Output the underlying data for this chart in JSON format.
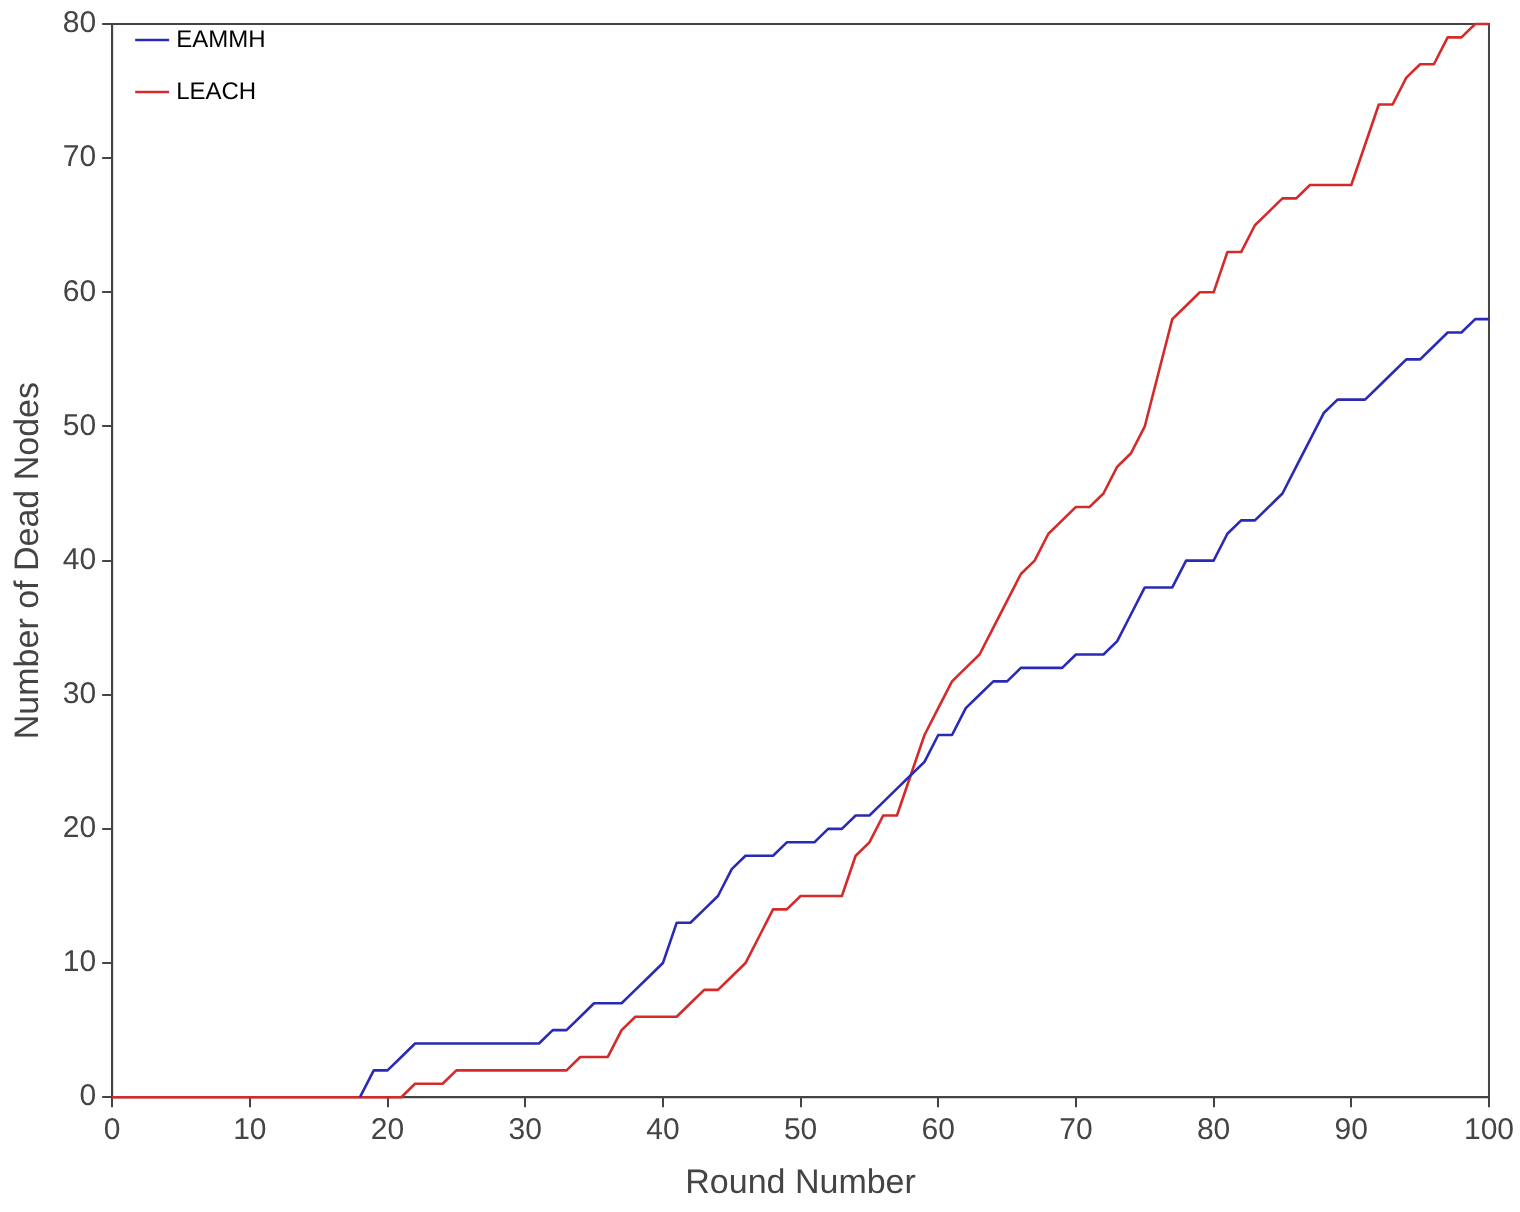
{
  "chart_data": {
    "type": "line",
    "xlabel": "Round Number",
    "ylabel": "Number of Dead Nodes",
    "x": [
      0,
      1,
      2,
      3,
      4,
      5,
      6,
      7,
      8,
      9,
      10,
      11,
      12,
      13,
      14,
      15,
      16,
      17,
      18,
      19,
      20,
      21,
      22,
      23,
      24,
      25,
      26,
      27,
      28,
      29,
      30,
      31,
      32,
      33,
      34,
      35,
      36,
      37,
      38,
      39,
      40,
      41,
      42,
      43,
      44,
      45,
      46,
      47,
      48,
      49,
      50,
      51,
      52,
      53,
      54,
      55,
      56,
      57,
      58,
      59,
      60,
      61,
      62,
      63,
      64,
      65,
      66,
      67,
      68,
      69,
      70,
      71,
      72,
      73,
      74,
      75,
      76,
      77,
      78,
      79,
      80,
      81,
      82,
      83,
      84,
      85,
      86,
      87,
      88,
      89,
      90,
      91,
      92,
      93,
      94,
      95,
      96,
      97,
      98,
      99,
      100
    ],
    "series": [
      {
        "name": "EAMMH",
        "color": "#2a2ab4",
        "values": [
          null,
          null,
          null,
          null,
          null,
          null,
          null,
          null,
          null,
          null,
          null,
          null,
          null,
          null,
          null,
          null,
          null,
          null,
          0,
          2,
          2,
          3,
          4,
          4,
          4,
          4,
          4,
          4,
          4,
          4,
          4,
          4,
          5,
          5,
          6,
          7,
          7,
          7,
          8,
          9,
          10,
          13,
          13,
          14,
          15,
          17,
          18,
          18,
          18,
          19,
          19,
          19,
          20,
          20,
          21,
          21,
          22,
          23,
          24,
          25,
          27,
          27,
          29,
          30,
          31,
          31,
          32,
          32,
          32,
          32,
          33,
          33,
          33,
          34,
          36,
          38,
          38,
          38,
          40,
          40,
          40,
          42,
          43,
          43,
          44,
          45,
          47,
          49,
          51,
          52,
          52,
          52,
          53,
          54,
          55,
          55,
          56,
          57,
          57,
          58,
          58
        ]
      },
      {
        "name": "LEACH",
        "color": "#d42a2a",
        "values": [
          0,
          0,
          0,
          0,
          0,
          0,
          0,
          0,
          0,
          0,
          0,
          0,
          0,
          0,
          0,
          0,
          0,
          0,
          0,
          0,
          0,
          0,
          1,
          1,
          1,
          2,
          2,
          2,
          2,
          2,
          2,
          2,
          2,
          2,
          3,
          3,
          3,
          5,
          6,
          6,
          6,
          6,
          7,
          8,
          8,
          9,
          10,
          12,
          14,
          14,
          15,
          15,
          15,
          15,
          18,
          19,
          21,
          21,
          24,
          27,
          29,
          31,
          32,
          33,
          35,
          37,
          39,
          40,
          42,
          43,
          44,
          44,
          45,
          47,
          48,
          50,
          54,
          58,
          59,
          60,
          60,
          63,
          63,
          65,
          66,
          67,
          67,
          68,
          68,
          68,
          68,
          71,
          74,
          74,
          76,
          77,
          77,
          79,
          79,
          80,
          80
        ]
      }
    ],
    "xlim": [
      0,
      100
    ],
    "xticks": [
      0,
      10,
      20,
      30,
      40,
      50,
      60,
      70,
      80,
      90,
      100
    ],
    "ylim": [
      0,
      80
    ],
    "yticks": [
      0,
      10,
      20,
      30,
      40,
      50,
      60,
      70,
      80
    ],
    "legend": "top left",
    "marker": "none",
    "line_style": "solid"
  }
}
